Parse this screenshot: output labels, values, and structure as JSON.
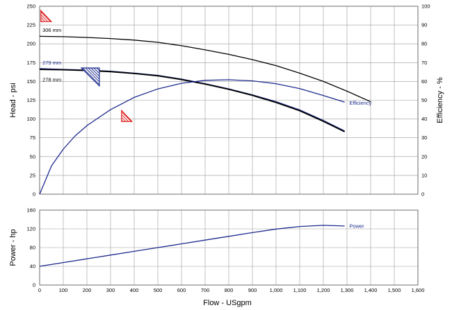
{
  "chart_data": [
    {
      "type": "line",
      "name": "head-efficiency",
      "ylabel": "Head - psi",
      "y2label": "Efficiency - %",
      "xlim": [
        0,
        1600
      ],
      "ylim": [
        0,
        250
      ],
      "y2lim": [
        0,
        100
      ],
      "grid": true,
      "yticks": [
        "0",
        "25",
        "50",
        "75",
        "100",
        "125",
        "150",
        "175",
        "200",
        "225",
        "250"
      ],
      "y2ticks": [
        "0",
        "10",
        "20",
        "30",
        "40",
        "50",
        "60",
        "70",
        "80",
        "90",
        "100"
      ],
      "series": [
        {
          "name": "306 mm",
          "axis": "left",
          "color": "#000000",
          "width": 1.3,
          "x": [
            0,
            100,
            200,
            300,
            400,
            500,
            600,
            700,
            800,
            900,
            1000,
            1100,
            1200,
            1300,
            1400
          ],
          "y": [
            210,
            209.5,
            208.5,
            207,
            205,
            202,
            197.5,
            192,
            186,
            179,
            171,
            161,
            150,
            137,
            123
          ]
        },
        {
          "name": "279 mm",
          "axis": "left",
          "color": "#1c2a8c",
          "width": 1.5,
          "x": [
            0,
            100,
            200,
            300,
            400,
            500,
            600,
            700,
            800,
            900,
            1000,
            1100,
            1200,
            1290
          ],
          "y": [
            167,
            166,
            165,
            163.5,
            161,
            158,
            153,
            147,
            140,
            132,
            123,
            112,
            98,
            84
          ]
        },
        {
          "name": "278 mm",
          "axis": "left",
          "color": "#000000",
          "width": 1.8,
          "x": [
            0,
            100,
            200,
            300,
            400,
            500,
            600,
            700,
            800,
            900,
            1000,
            1100,
            1200,
            1290
          ],
          "y": [
            166,
            165.5,
            164.5,
            163,
            160.5,
            157.5,
            152.5,
            146.5,
            139.5,
            131.5,
            122,
            111,
            97,
            83
          ]
        },
        {
          "name": "Efficiency",
          "axis": "right",
          "color": "#1c2a8c",
          "width": 1.3,
          "x": [
            0,
            50,
            100,
            150,
            200,
            300,
            400,
            500,
            600,
            700,
            800,
            900,
            1000,
            1100,
            1200,
            1290
          ],
          "y": [
            0,
            15,
            24,
            31,
            36.5,
            45,
            51.5,
            56,
            59,
            60.6,
            60.9,
            60.3,
            58.8,
            56.2,
            52.5,
            49
          ]
        }
      ],
      "curve_labels": [
        {
          "text": "306 mm",
          "x": 12,
          "y": 218,
          "color": "#000000",
          "anchor": "start"
        },
        {
          "text": "279 mm",
          "x": 12,
          "y": 175,
          "color": "#1c2a8c",
          "anchor": "start"
        },
        {
          "text": "278 mm",
          "x": 12,
          "y": 152,
          "color": "#000000",
          "anchor": "start"
        },
        {
          "text": "Efficiency",
          "x": 1310,
          "y": 48.5,
          "color": "#1c2a8c",
          "anchor": "start",
          "axis": "right"
        }
      ],
      "markers": [
        {
          "kind": "red-hatched",
          "x": 20,
          "y": 236,
          "color": "#e02020"
        },
        {
          "kind": "blue-hatched",
          "x": 235,
          "y": 155,
          "color": "#1c2a8c"
        },
        {
          "kind": "red-hatched",
          "x": 370,
          "y": 104,
          "color": "#e02020"
        }
      ]
    },
    {
      "type": "line",
      "name": "power",
      "ylabel": "Power - hp",
      "xlabel": "Flow - USgpm",
      "xlim": [
        0,
        1600
      ],
      "ylim": [
        0,
        160
      ],
      "grid": true,
      "xticks": [
        "0",
        "100",
        "200",
        "300",
        "400",
        "500",
        "600",
        "700",
        "800",
        "900",
        "1,000",
        "1,100",
        "1,200",
        "1,300",
        "1,400",
        "1,500",
        "1,600"
      ],
      "yticks": [
        "0",
        "40",
        "80",
        "120",
        "160"
      ],
      "series": [
        {
          "name": "Power",
          "color": "#1c2a8c",
          "width": 1.3,
          "x": [
            0,
            100,
            200,
            300,
            400,
            500,
            600,
            700,
            800,
            900,
            1000,
            1100,
            1200,
            1290
          ],
          "y": [
            40,
            48,
            56,
            64,
            72,
            80,
            88,
            96,
            104,
            112,
            119.5,
            125,
            127.5,
            126
          ]
        }
      ],
      "curve_labels": [
        {
          "text": "Power",
          "x": 1310,
          "y": 126,
          "color": "#1c2a8c",
          "anchor": "start"
        }
      ]
    }
  ]
}
